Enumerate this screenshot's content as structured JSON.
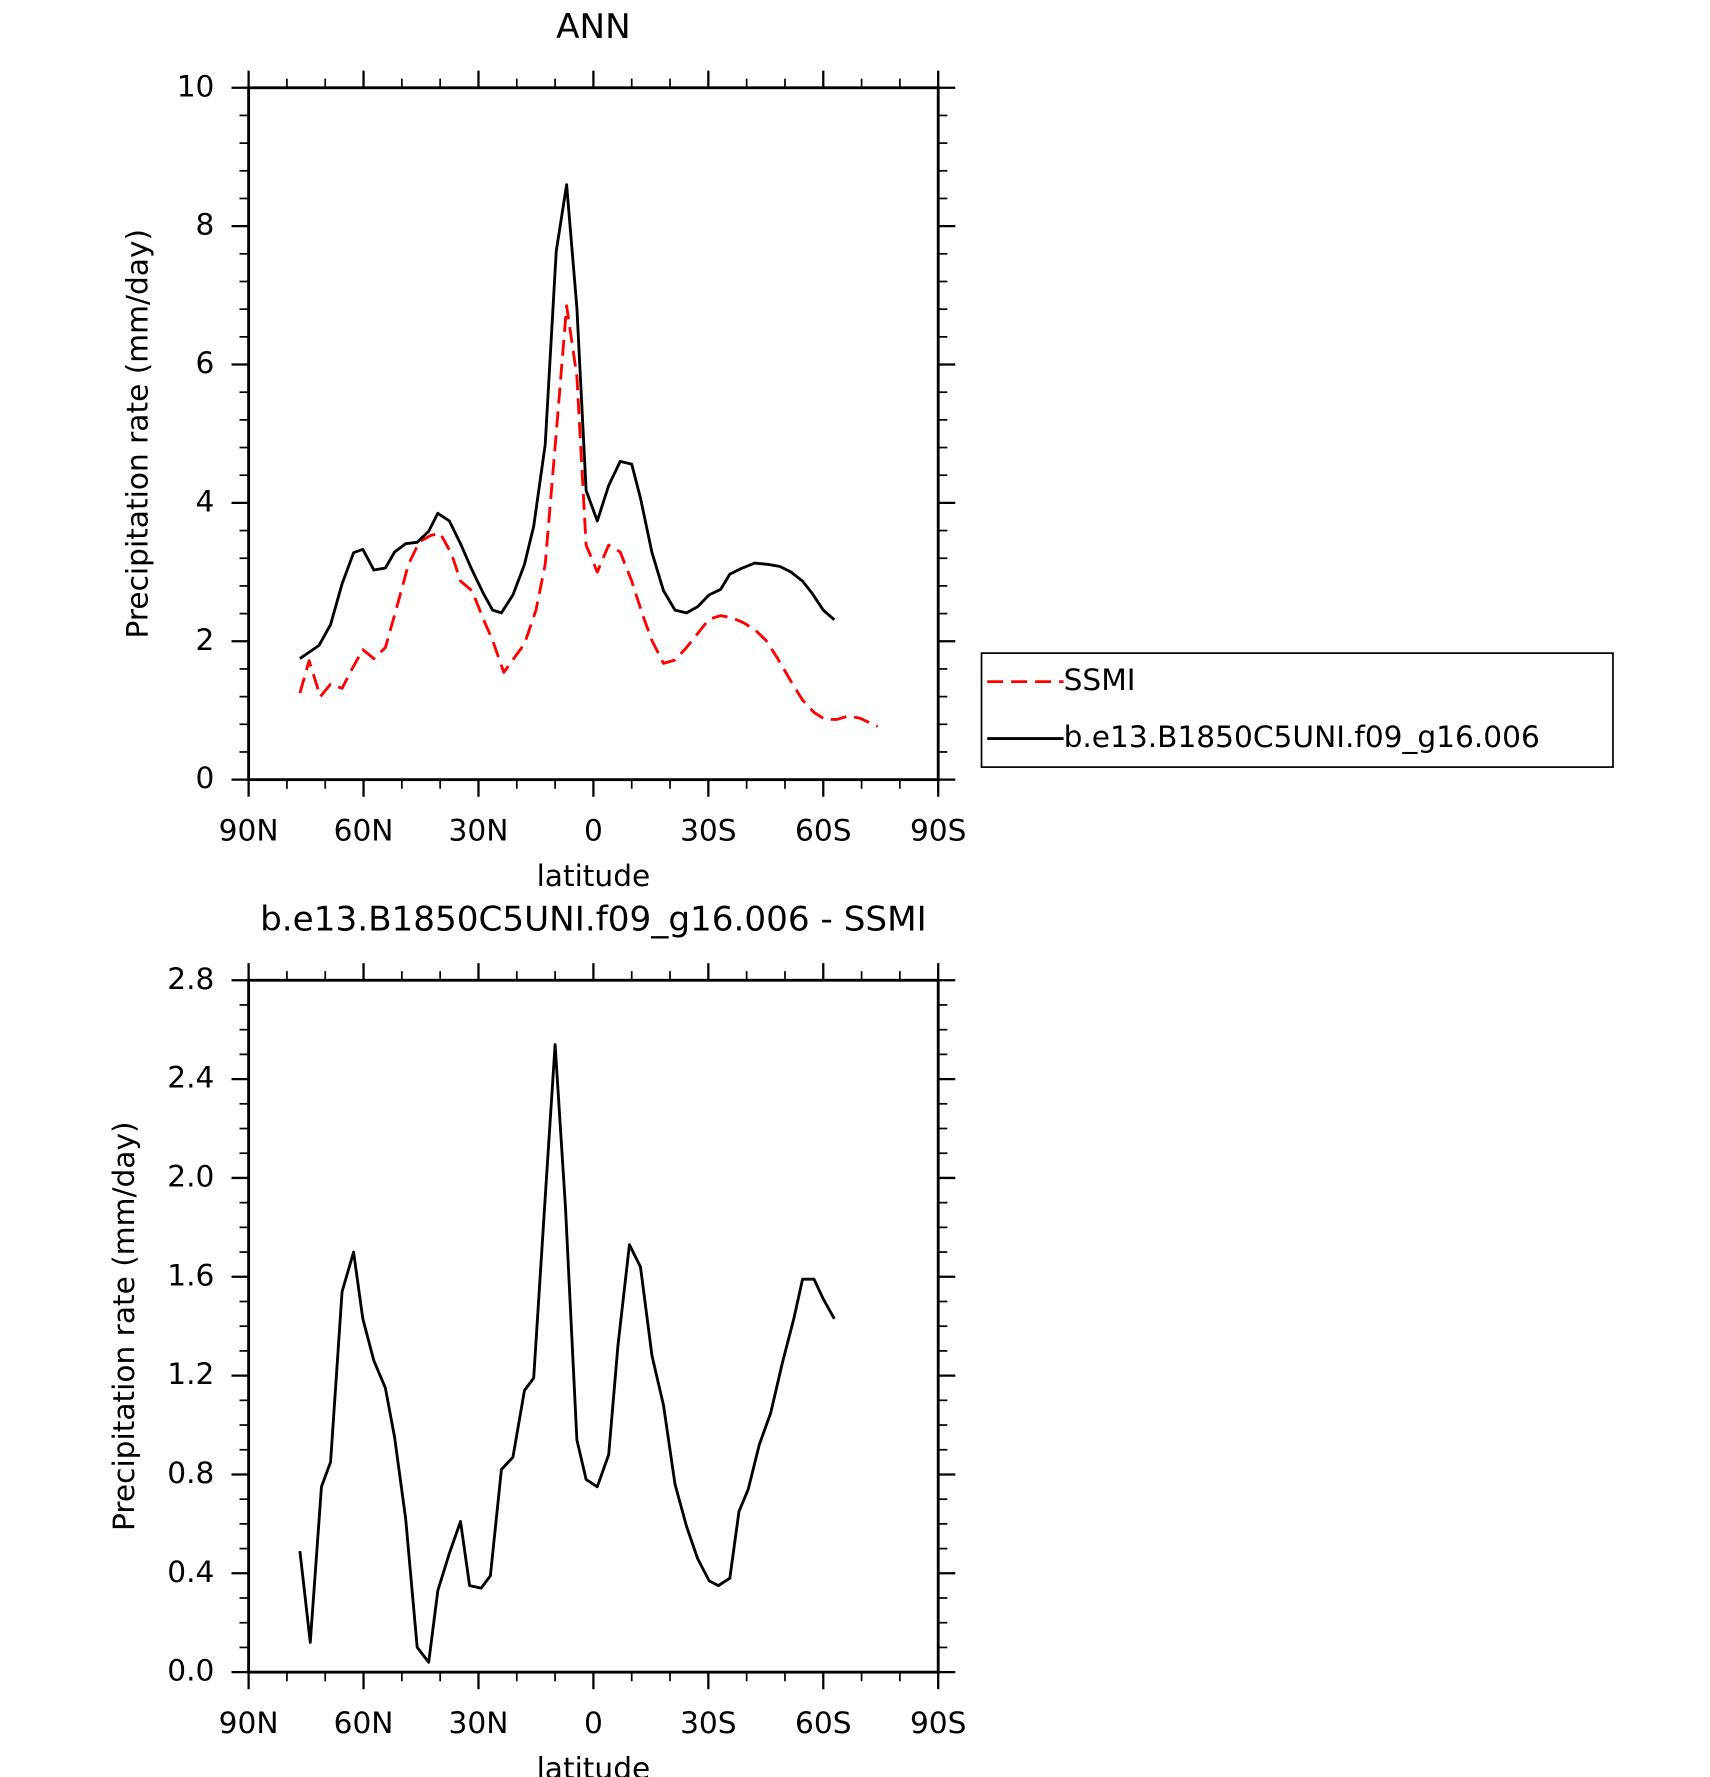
{
  "chart_data": [
    {
      "type": "line",
      "title": "ANN",
      "xlabel": "latitude",
      "ylabel": "Precipitation rate (mm/day)",
      "xlim": [
        90,
        -90
      ],
      "xticks": [
        {
          "value": 90,
          "label": "90N"
        },
        {
          "value": 60,
          "label": "60N"
        },
        {
          "value": 30,
          "label": "30N"
        },
        0,
        {
          "value": -30,
          "label": "30S"
        },
        {
          "value": -60,
          "label": "60S"
        },
        {
          "value": -90,
          "label": "90S"
        }
      ],
      "ylim": [
        0,
        10
      ],
      "yticks": [
        0,
        2,
        4,
        6,
        8,
        10
      ],
      "legend": "right",
      "series": [
        {
          "name": "SSMI",
          "color": "#ff0000",
          "dash": true,
          "x": [
            76.6,
            74.2,
            71.3,
            68.6,
            65.6,
            63.2,
            60.2,
            57.3,
            54.3,
            51.3,
            48.3,
            45.4,
            42.4,
            40.0,
            37.0,
            34.7,
            31.7,
            28.7,
            26.3,
            23.4,
            20.4,
            18.0,
            15.0,
            12.6,
            9.7,
            7.0,
            4.3,
            1.9,
            -1.0,
            -4.0,
            -7.0,
            -10.0,
            -12.9,
            -15.3,
            -18.3,
            -21.3,
            -24.3,
            -27.2,
            -30.2,
            -33.2,
            -36.2,
            -39.1,
            -42.1,
            -45.1,
            -48.1,
            -51.6,
            -54.6,
            -57.6,
            -60.5,
            -63.5,
            -66.5,
            -69.5,
            -74.2
          ],
          "values": [
            1.25,
            1.72,
            1.2,
            1.38,
            1.32,
            1.58,
            1.88,
            1.75,
            1.91,
            2.5,
            3.11,
            3.44,
            3.53,
            3.56,
            3.26,
            2.87,
            2.73,
            2.32,
            2.01,
            1.55,
            1.78,
            1.96,
            2.45,
            3.11,
            5.01,
            6.85,
            5.83,
            3.39,
            3.0,
            3.39,
            3.29,
            2.87,
            2.37,
            2.01,
            1.68,
            1.73,
            1.91,
            2.11,
            2.32,
            2.37,
            2.34,
            2.27,
            2.17,
            2.01,
            1.75,
            1.42,
            1.15,
            0.97,
            0.87,
            0.87,
            0.92,
            0.89,
            0.77
          ]
        },
        {
          "name": "b.e13.B1850C5UNI.f09_g16.006",
          "color": "#000000",
          "dash": false,
          "x": [
            76.6,
            71.6,
            68.6,
            65.6,
            62.6,
            60.2,
            57.3,
            54.3,
            51.9,
            49.0,
            46.0,
            43.0,
            40.6,
            37.6,
            34.7,
            31.7,
            28.7,
            26.3,
            24.0,
            21.0,
            18.0,
            15.6,
            12.6,
            9.7,
            7.0,
            4.3,
            1.9,
            -1.0,
            -4.0,
            -7.0,
            -10.0,
            -12.3,
            -15.3,
            -18.3,
            -21.3,
            -24.3,
            -27.2,
            -30.2,
            -33.2,
            -35.6,
            -38.5,
            -42.1,
            -45.7,
            -48.7,
            -51.6,
            -54.6,
            -57.0,
            -60.0,
            -62.9
          ],
          "values": [
            1.75,
            1.94,
            2.24,
            2.83,
            3.28,
            3.33,
            3.03,
            3.06,
            3.29,
            3.41,
            3.43,
            3.59,
            3.85,
            3.74,
            3.41,
            3.03,
            2.69,
            2.45,
            2.41,
            2.67,
            3.11,
            3.66,
            4.84,
            7.64,
            8.6,
            6.82,
            4.18,
            3.74,
            4.25,
            4.6,
            4.56,
            4.07,
            3.28,
            2.73,
            2.45,
            2.41,
            2.5,
            2.67,
            2.75,
            2.97,
            3.05,
            3.13,
            3.11,
            3.08,
            3.0,
            2.87,
            2.7,
            2.45,
            2.31
          ]
        }
      ]
    },
    {
      "type": "line",
      "title": "b.e13.B1850C5UNI.f09_g16.006 - SSMI",
      "xlabel": "latitude",
      "ylabel": "Precipitation rate (mm/day)",
      "xlim": [
        90,
        -90
      ],
      "xticks": [
        {
          "value": 90,
          "label": "90N"
        },
        {
          "value": 60,
          "label": "60N"
        },
        {
          "value": 30,
          "label": "30N"
        },
        0,
        {
          "value": -30,
          "label": "30S"
        },
        {
          "value": -60,
          "label": "60S"
        },
        {
          "value": -90,
          "label": "90S"
        }
      ],
      "ylim": [
        0,
        2.8
      ],
      "yticks": [
        {
          "value": 0,
          "label": "0.0"
        },
        0.4,
        0.8,
        1.2,
        1.6,
        {
          "value": 2,
          "label": "2.0"
        },
        2.4,
        2.8
      ],
      "series": [
        {
          "color": "#000000",
          "dash": false,
          "x": [
            76.6,
            73.9,
            71.0,
            68.6,
            65.6,
            62.6,
            60.2,
            57.3,
            54.3,
            51.9,
            49.0,
            46.0,
            43.0,
            40.6,
            37.6,
            34.7,
            32.3,
            29.3,
            26.9,
            24.0,
            21.0,
            18.0,
            15.6,
            12.6,
            10.0,
            7.3,
            4.3,
            1.9,
            -1.0,
            -4.0,
            -6.4,
            -9.4,
            -12.3,
            -15.3,
            -18.3,
            -21.3,
            -24.3,
            -27.2,
            -30.2,
            -32.6,
            -35.6,
            -38.0,
            -40.4,
            -43.3,
            -46.3,
            -49.3,
            -52.3,
            -54.6,
            -57.6,
            -60.0,
            -62.9
          ],
          "values": [
            0.49,
            0.12,
            0.75,
            0.85,
            1.54,
            1.7,
            1.43,
            1.26,
            1.15,
            0.95,
            0.62,
            0.1,
            0.04,
            0.33,
            0.48,
            0.61,
            0.35,
            0.34,
            0.39,
            0.82,
            0.87,
            1.14,
            1.19,
            1.92,
            2.54,
            1.88,
            0.94,
            0.78,
            0.75,
            0.88,
            1.32,
            1.73,
            1.64,
            1.28,
            1.08,
            0.76,
            0.59,
            0.46,
            0.37,
            0.35,
            0.38,
            0.65,
            0.74,
            0.92,
            1.05,
            1.25,
            1.43,
            1.59,
            1.59,
            1.51,
            1.43
          ]
        }
      ]
    }
  ]
}
